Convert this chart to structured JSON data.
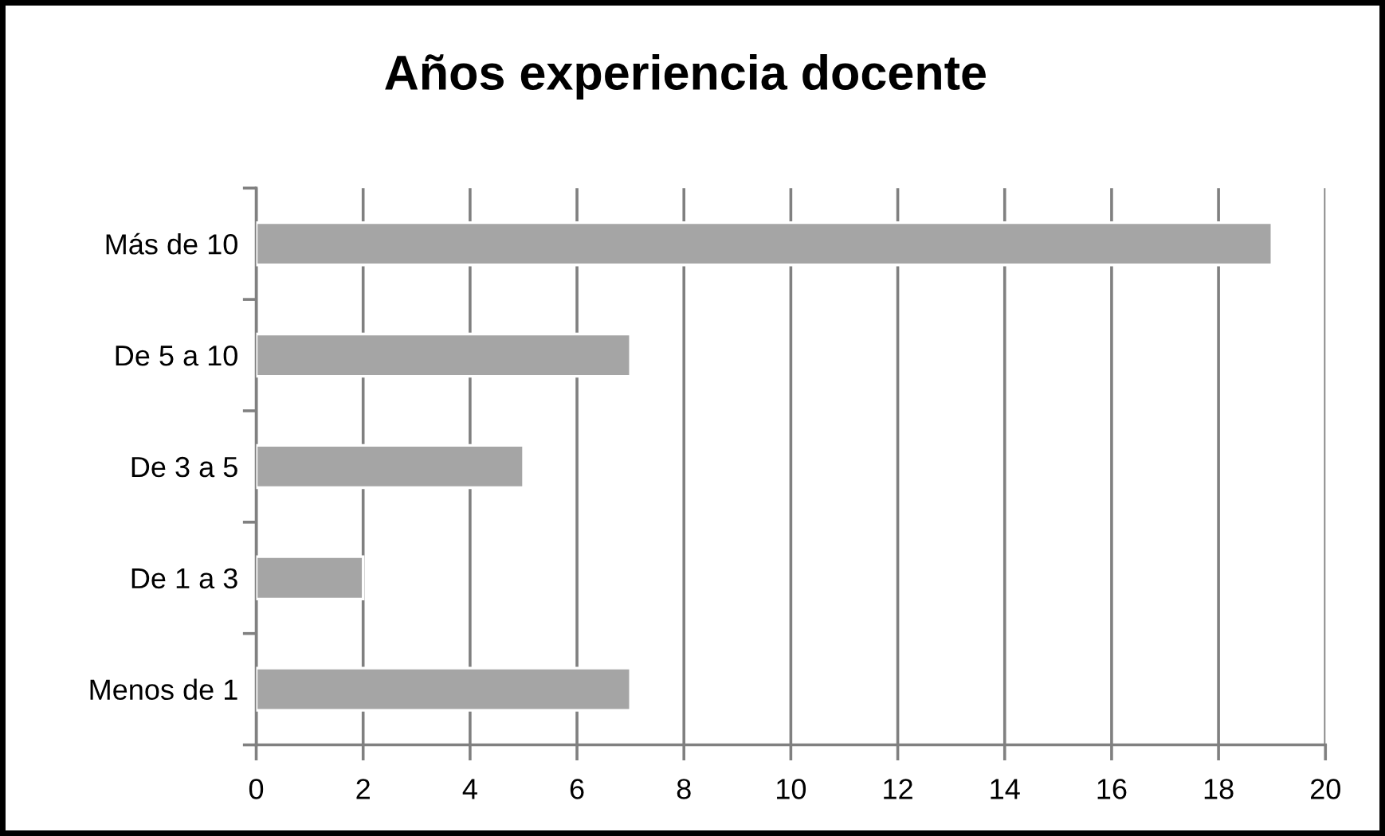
{
  "chart_data": {
    "type": "bar",
    "title": "Años experiencia docente",
    "orientation": "horizontal",
    "categories": [
      "Más de 10",
      "De 5 a 10",
      "De 3 a 5",
      "De 1 a 3",
      "Menos de 1"
    ],
    "values": [
      19,
      7,
      5,
      2,
      7
    ],
    "color": "#a5a5a5",
    "xlim": [
      0,
      20
    ],
    "xticks": [
      0,
      2,
      4,
      6,
      8,
      10,
      12,
      14,
      16,
      18,
      20
    ],
    "grid": "x",
    "legend": false
  }
}
